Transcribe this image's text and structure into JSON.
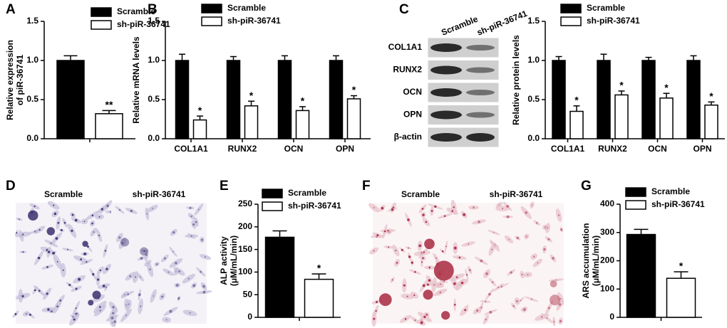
{
  "chart_data": [
    {
      "type": "bar",
      "panel": "A",
      "ylabel": [
        "Relative expression",
        "of piR-36741"
      ],
      "categories": [
        null
      ],
      "series": [
        {
          "name": "Scramble",
          "color": "#000000",
          "values": [
            1.0
          ],
          "errors": [
            0.06
          ]
        },
        {
          "name": "sh-piR-36741",
          "color": "#ffffff",
          "values": [
            0.32
          ],
          "errors": [
            0.04
          ],
          "annotations": [
            "**"
          ]
        }
      ],
      "ylim": [
        0,
        1.5
      ],
      "yticks": [
        {
          "value": 0,
          "label": "0.0"
        },
        0.5,
        {
          "value": 1,
          "label": "1.0"
        },
        1.5
      ]
    },
    {
      "type": "bar",
      "panel": "B",
      "ylabel": [
        "Relative mRNA levels"
      ],
      "categories": [
        "COL1A1",
        "RUNX2",
        "OCN",
        "OPN"
      ],
      "series": [
        {
          "name": "Scramble",
          "color": "#000000",
          "values": [
            1.0,
            1.0,
            1.0,
            1.0
          ],
          "errors": [
            0.08,
            0.05,
            0.06,
            0.06
          ]
        },
        {
          "name": "sh-piR-36741",
          "color": "#ffffff",
          "values": [
            0.24,
            0.42,
            0.36,
            0.51
          ],
          "errors": [
            0.05,
            0.06,
            0.05,
            0.04
          ],
          "annotations": [
            "*",
            "*",
            "*",
            "*"
          ]
        }
      ],
      "ylim": [
        0,
        1.5
      ],
      "yticks": [
        {
          "value": 0,
          "label": "0.0"
        },
        0.5,
        {
          "value": 1,
          "label": "1.0"
        },
        1.5
      ]
    },
    {
      "type": "bar",
      "panel": "C",
      "ylabel": [
        "Relative protein levels"
      ],
      "categories": [
        "COL1A1",
        "RUNX2",
        "OCN",
        "OPN"
      ],
      "series": [
        {
          "name": "Scramble",
          "color": "#000000",
          "values": [
            1.0,
            1.0,
            1.0,
            1.0
          ],
          "errors": [
            0.05,
            0.08,
            0.04,
            0.06
          ]
        },
        {
          "name": "sh-piR-36741",
          "color": "#ffffff",
          "values": [
            0.35,
            0.56,
            0.52,
            0.43
          ],
          "errors": [
            0.07,
            0.05,
            0.06,
            0.04
          ],
          "annotations": [
            "*",
            "*",
            "*",
            "*"
          ]
        }
      ],
      "ylim": [
        0,
        1.5
      ],
      "yticks": [
        {
          "value": 0,
          "label": "0.0"
        },
        0.5,
        {
          "value": 1,
          "label": "1.0"
        },
        1.5
      ]
    },
    {
      "type": "bar",
      "panel": "E",
      "ylabel": [
        "ALP activity",
        "(μM/mL/min)"
      ],
      "categories": [
        null
      ],
      "series": [
        {
          "name": "Scramble",
          "color": "#000000",
          "values": [
            177
          ],
          "errors": [
            14
          ]
        },
        {
          "name": "sh-piR-36741",
          "color": "#ffffff",
          "values": [
            84
          ],
          "errors": [
            12
          ],
          "annotations": [
            "*"
          ]
        }
      ],
      "ylim": [
        0,
        250
      ],
      "yticks": [
        0,
        50,
        100,
        150,
        200,
        250
      ]
    },
    {
      "type": "bar",
      "panel": "G",
      "ylabel": [
        "ARS accumulation",
        "(μM/mL/min)"
      ],
      "categories": [
        null
      ],
      "series": [
        {
          "name": "Scramble",
          "color": "#000000",
          "values": [
            293
          ],
          "errors": [
            18
          ]
        },
        {
          "name": "sh-piR-36741",
          "color": "#ffffff",
          "values": [
            138
          ],
          "errors": [
            23
          ],
          "annotations": [
            "*"
          ]
        }
      ],
      "ylim": [
        0,
        400
      ],
      "yticks": [
        0,
        100,
        200,
        300,
        400
      ]
    }
  ],
  "blot": {
    "columns": [
      "Scramble",
      "sh-piR-36741"
    ],
    "rows": [
      "COL1A1",
      "RUNX2",
      "OCN",
      "OPN",
      "β-actin"
    ]
  },
  "images": [
    {
      "panel": "D",
      "columns": [
        "Scramble",
        "sh-piR-36741"
      ]
    },
    {
      "panel": "F",
      "columns": [
        "Scramble",
        "sh-piR-36741"
      ]
    }
  ]
}
